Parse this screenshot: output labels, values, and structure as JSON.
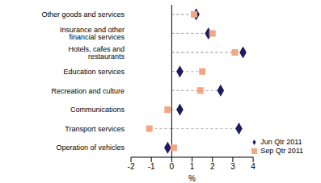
{
  "chart_data": {
    "type": "scatter",
    "orientation": "horizontal",
    "categories": [
      "Operation of vehicles",
      "Transport services",
      "Communications",
      "Recreation and culture",
      "Education services",
      "Hotels, cafes and restaurants",
      "Insurance and other financial services",
      "Other goods and services"
    ],
    "series": [
      {
        "name": "Jun Qtr 2011",
        "color": "#1c1c5e",
        "marker": "diamond",
        "values": [
          -0.2,
          3.3,
          0.4,
          2.4,
          0.4,
          3.5,
          1.8,
          1.2
        ]
      },
      {
        "name": "Sep Qtr 2011",
        "color": "#f4a582",
        "marker": "square",
        "values": [
          0.1,
          -1.1,
          -0.2,
          1.4,
          1.5,
          3.1,
          2.0,
          1.1
        ]
      }
    ],
    "x_label": "%",
    "xlim": [
      -2,
      4
    ],
    "xticks": [
      -2,
      -1,
      0,
      1,
      2,
      3,
      4
    ],
    "grid": false,
    "legend": "bottom right"
  }
}
